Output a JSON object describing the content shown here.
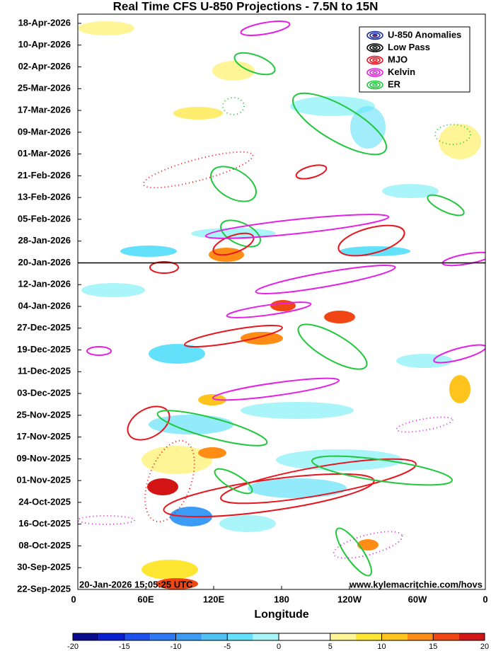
{
  "chart_data": {
    "type": "hovmoller",
    "title": "Real Time CFS U-850 Projections - 7.5N to 15N",
    "xlabel": "Longitude",
    "xlim": [
      0,
      360
    ],
    "xticks": [
      0,
      {
        "value": 60,
        "label": "60E"
      },
      {
        "value": 120,
        "label": "120E"
      },
      180,
      {
        "value": 240,
        "label": "120W"
      },
      {
        "value": 300,
        "label": "60W"
      },
      {
        "value": 360,
        "label": "0"
      }
    ],
    "dates": [
      "22-Sep-2025",
      "30-Sep-2025",
      "08-Oct-2025",
      "16-Oct-2025",
      "24-Oct-2025",
      "01-Nov-2025",
      "09-Nov-2025",
      "17-Nov-2025",
      "25-Nov-2025",
      "03-Dec-2025",
      "11-Dec-2025",
      "19-Dec-2025",
      "27-Dec-2025",
      "04-Jan-2026",
      "12-Jan-2026",
      "20-Jan-2026",
      "28-Jan-2026",
      "05-Feb-2026",
      "13-Feb-2026",
      "21-Feb-2026",
      "01-Mar-2026",
      "09-Mar-2026",
      "17-Mar-2026",
      "25-Mar-2026",
      "02-Apr-2026",
      "10-Apr-2026",
      "18-Apr-2026"
    ],
    "timestamp": "20-Jan-2026 15:05:25 UTC",
    "source": "www.kylemacritchie.com/hovs",
    "legend": [
      {
        "name": "U-850 Anomalies",
        "color": "#1c2d9c"
      },
      {
        "name": "Low Pass",
        "color": "#000000"
      },
      {
        "name": "MJO",
        "color": "#e8141e"
      },
      {
        "name": "Kelvin",
        "color": "#e61ee6"
      },
      {
        "name": "ER",
        "color": "#22c83c"
      }
    ],
    "colorbar": {
      "lim": [
        -20,
        20
      ],
      "ticks": [
        -20,
        -15,
        -10,
        -5,
        0,
        5,
        10,
        15,
        20
      ],
      "colors": [
        "#0a0a8c",
        "#0a1ed2",
        "#1e50f0",
        "#2c78f5",
        "#3c9bf5",
        "#50c3f5",
        "#64e1fa",
        "#aaf5fa",
        "#ffffff",
        "#ffffff",
        "#fff596",
        "#ffe632",
        "#ffc31e",
        "#ff8c14",
        "#f04614",
        "#d21414"
      ]
    }
  }
}
